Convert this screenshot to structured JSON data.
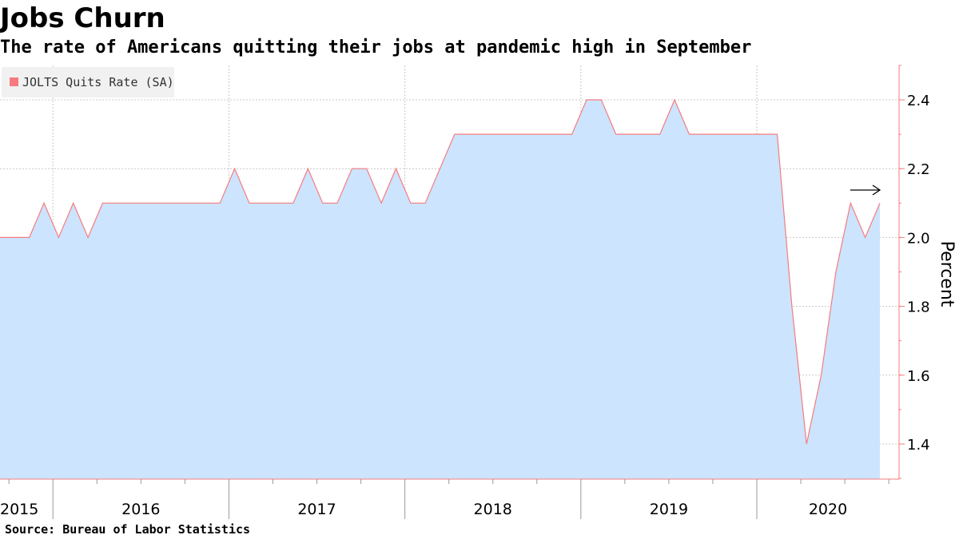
{
  "header": {
    "title": "Jobs Churn",
    "subtitle": "The rate of Americans quitting their jobs at pandemic high in September"
  },
  "footer": {
    "source": "Source: Bureau of Labor Statistics"
  },
  "chart_data": {
    "type": "area",
    "title": "Jobs Churn",
    "subtitle": "The rate of Americans quitting their jobs at pandemic high in September",
    "xlabel": "",
    "ylabel": "Percent",
    "ylim": [
      1.3,
      2.5
    ],
    "yticks": [
      1.4,
      1.6,
      1.8,
      2.0,
      2.2,
      2.4
    ],
    "ytick_labels": [
      "1.4",
      "1.6",
      "1.8",
      "2.0",
      "2.2",
      "2.4"
    ],
    "x_year_labels": [
      "2015",
      "2016",
      "2017",
      "2018",
      "2019",
      "2020"
    ],
    "y_axis_position": "right",
    "grid": true,
    "legend": {
      "position": "top-left",
      "entries": [
        "JOLTS Quits Rate (SA)"
      ]
    },
    "colors": {
      "line": "#f77b7e",
      "fill": "#cce4fd",
      "axis": "#f77b7e",
      "grid": "#c8c8c8"
    },
    "annotation": "right-arrow",
    "series": [
      {
        "name": "JOLTS Quits Rate (SA)",
        "x": [
          "2015-09",
          "2015-10",
          "2015-11",
          "2015-12",
          "2016-01",
          "2016-02",
          "2016-03",
          "2016-04",
          "2016-05",
          "2016-06",
          "2016-07",
          "2016-08",
          "2016-09",
          "2016-10",
          "2016-11",
          "2016-12",
          "2017-01",
          "2017-02",
          "2017-03",
          "2017-04",
          "2017-05",
          "2017-06",
          "2017-07",
          "2017-08",
          "2017-09",
          "2017-10",
          "2017-11",
          "2017-12",
          "2018-01",
          "2018-02",
          "2018-03",
          "2018-04",
          "2018-05",
          "2018-06",
          "2018-07",
          "2018-08",
          "2018-09",
          "2018-10",
          "2018-11",
          "2018-12",
          "2019-01",
          "2019-02",
          "2019-03",
          "2019-04",
          "2019-05",
          "2019-06",
          "2019-07",
          "2019-08",
          "2019-09",
          "2019-10",
          "2019-11",
          "2019-12",
          "2020-01",
          "2020-02",
          "2020-03",
          "2020-04",
          "2020-05",
          "2020-06",
          "2020-07",
          "2020-08",
          "2020-09"
        ],
        "values": [
          2.0,
          2.0,
          2.0,
          2.1,
          2.0,
          2.1,
          2.0,
          2.1,
          2.1,
          2.1,
          2.1,
          2.1,
          2.1,
          2.1,
          2.1,
          2.1,
          2.2,
          2.1,
          2.1,
          2.1,
          2.1,
          2.2,
          2.1,
          2.1,
          2.2,
          2.2,
          2.1,
          2.2,
          2.1,
          2.1,
          2.2,
          2.3,
          2.3,
          2.3,
          2.3,
          2.3,
          2.3,
          2.3,
          2.3,
          2.3,
          2.4,
          2.4,
          2.3,
          2.3,
          2.3,
          2.3,
          2.4,
          2.3,
          2.3,
          2.3,
          2.3,
          2.3,
          2.3,
          2.3,
          1.8,
          1.4,
          1.6,
          1.9,
          2.1,
          2.0,
          2.1
        ]
      }
    ]
  }
}
